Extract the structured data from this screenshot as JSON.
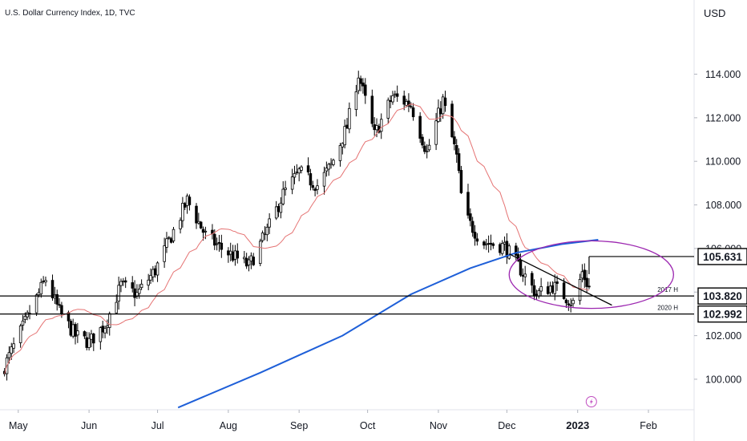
{
  "header": {
    "title": "U.S. Dollar Currency Index, 1D, TVC"
  },
  "colors": {
    "candle": "#000000",
    "ma_short": "#e57373",
    "ma_long": "#1e5fd8",
    "circle": "#9c27b0",
    "line": "#000000",
    "grid": "#000000"
  },
  "chart_data": {
    "type": "candlestick",
    "title": "U.S. Dollar Currency Index, 1D, TVC",
    "ylabel": "USD",
    "ylim": [
      98.6,
      116.3
    ],
    "y_ticks": [
      100,
      102,
      104,
      106,
      108,
      110,
      112,
      114
    ],
    "y_tick_labels": [
      "100.000",
      "102.000",
      "104.000",
      "106.000",
      "108.000",
      "110.000",
      "112.000",
      "114.000"
    ],
    "x_tick_labels": [
      "May",
      "Jun",
      "Jul",
      "Aug",
      "Sep",
      "Oct",
      "Nov",
      "Dec",
      "2023",
      "Feb"
    ],
    "x_range": [
      "2022-04-23",
      "2023-02-21"
    ],
    "x_ticks": [
      "2022-05-01",
      "2022-06-01",
      "2022-07-01",
      "2022-08-01",
      "2022-09-01",
      "2022-10-01",
      "2022-11-01",
      "2022-12-01",
      "2023-01-01",
      "2023-02-01"
    ],
    "waypoints": [
      [
        "2022-04-25",
        100.6
      ],
      [
        "2022-05-13",
        104.6
      ],
      [
        "2022-05-19",
        103.1
      ],
      [
        "2022-05-26",
        102.0
      ],
      [
        "2022-06-01",
        101.7
      ],
      [
        "2022-06-08",
        102.5
      ],
      [
        "2022-06-15",
        104.3
      ],
      [
        "2022-06-22",
        103.9
      ],
      [
        "2022-06-30",
        105.0
      ],
      [
        "2022-07-08",
        106.8
      ],
      [
        "2022-07-14",
        108.2
      ],
      [
        "2022-07-22",
        106.6
      ],
      [
        "2022-07-29",
        106.0
      ],
      [
        "2022-08-10",
        105.2
      ],
      [
        "2022-08-18",
        106.8
      ],
      [
        "2022-08-25",
        108.5
      ],
      [
        "2022-09-01",
        109.5
      ],
      [
        "2022-09-09",
        108.9
      ],
      [
        "2022-09-15",
        109.8
      ],
      [
        "2022-09-22",
        111.6
      ],
      [
        "2022-09-27",
        114.0
      ],
      [
        "2022-10-04",
        111.2
      ],
      [
        "2022-10-12",
        113.0
      ],
      [
        "2022-10-20",
        112.6
      ],
      [
        "2022-10-27",
        110.4
      ],
      [
        "2022-11-03",
        112.8
      ],
      [
        "2022-11-09",
        110.2
      ],
      [
        "2022-11-12",
        107.6
      ],
      [
        "2022-11-20",
        106.3
      ],
      [
        "2022-11-30",
        106.1
      ],
      [
        "2022-12-08",
        104.9
      ],
      [
        "2022-12-14",
        103.9
      ],
      [
        "2022-12-21",
        104.3
      ],
      [
        "2022-12-30",
        103.5
      ],
      [
        "2023-01-03",
        104.9
      ],
      [
        "2023-01-06",
        104.2
      ]
    ],
    "horizontal_lines": [
      {
        "label": "2017 H",
        "value": 103.82,
        "price_label": "103.820"
      },
      {
        "label": "2020 H",
        "value": 102.992,
        "price_label": "102.992"
      }
    ],
    "high_marker": {
      "value": 105.631,
      "price_label": "105.631",
      "start": "2023-01-06"
    },
    "trendline": {
      "start": [
        "2022-12-02",
        105.75
      ],
      "end": [
        "2023-01-16",
        103.4
      ]
    },
    "ma_long": {
      "name": "",
      "points": [
        [
          "2022-07-10",
          98.7
        ],
        [
          "2022-08-15",
          100.3
        ],
        [
          "2022-09-20",
          102.0
        ],
        [
          "2022-10-20",
          103.9
        ],
        [
          "2022-11-15",
          105.1
        ],
        [
          "2022-12-05",
          105.8
        ],
        [
          "2022-12-25",
          106.2
        ],
        [
          "2023-01-10",
          106.4
        ]
      ]
    },
    "ma_short_period": 20,
    "circle_annotation": {
      "center": [
        "2023-01-07",
        104.8
      ],
      "radius_days": 10,
      "radius_value": 1.55
    },
    "event_marker": "lightning-icon"
  }
}
